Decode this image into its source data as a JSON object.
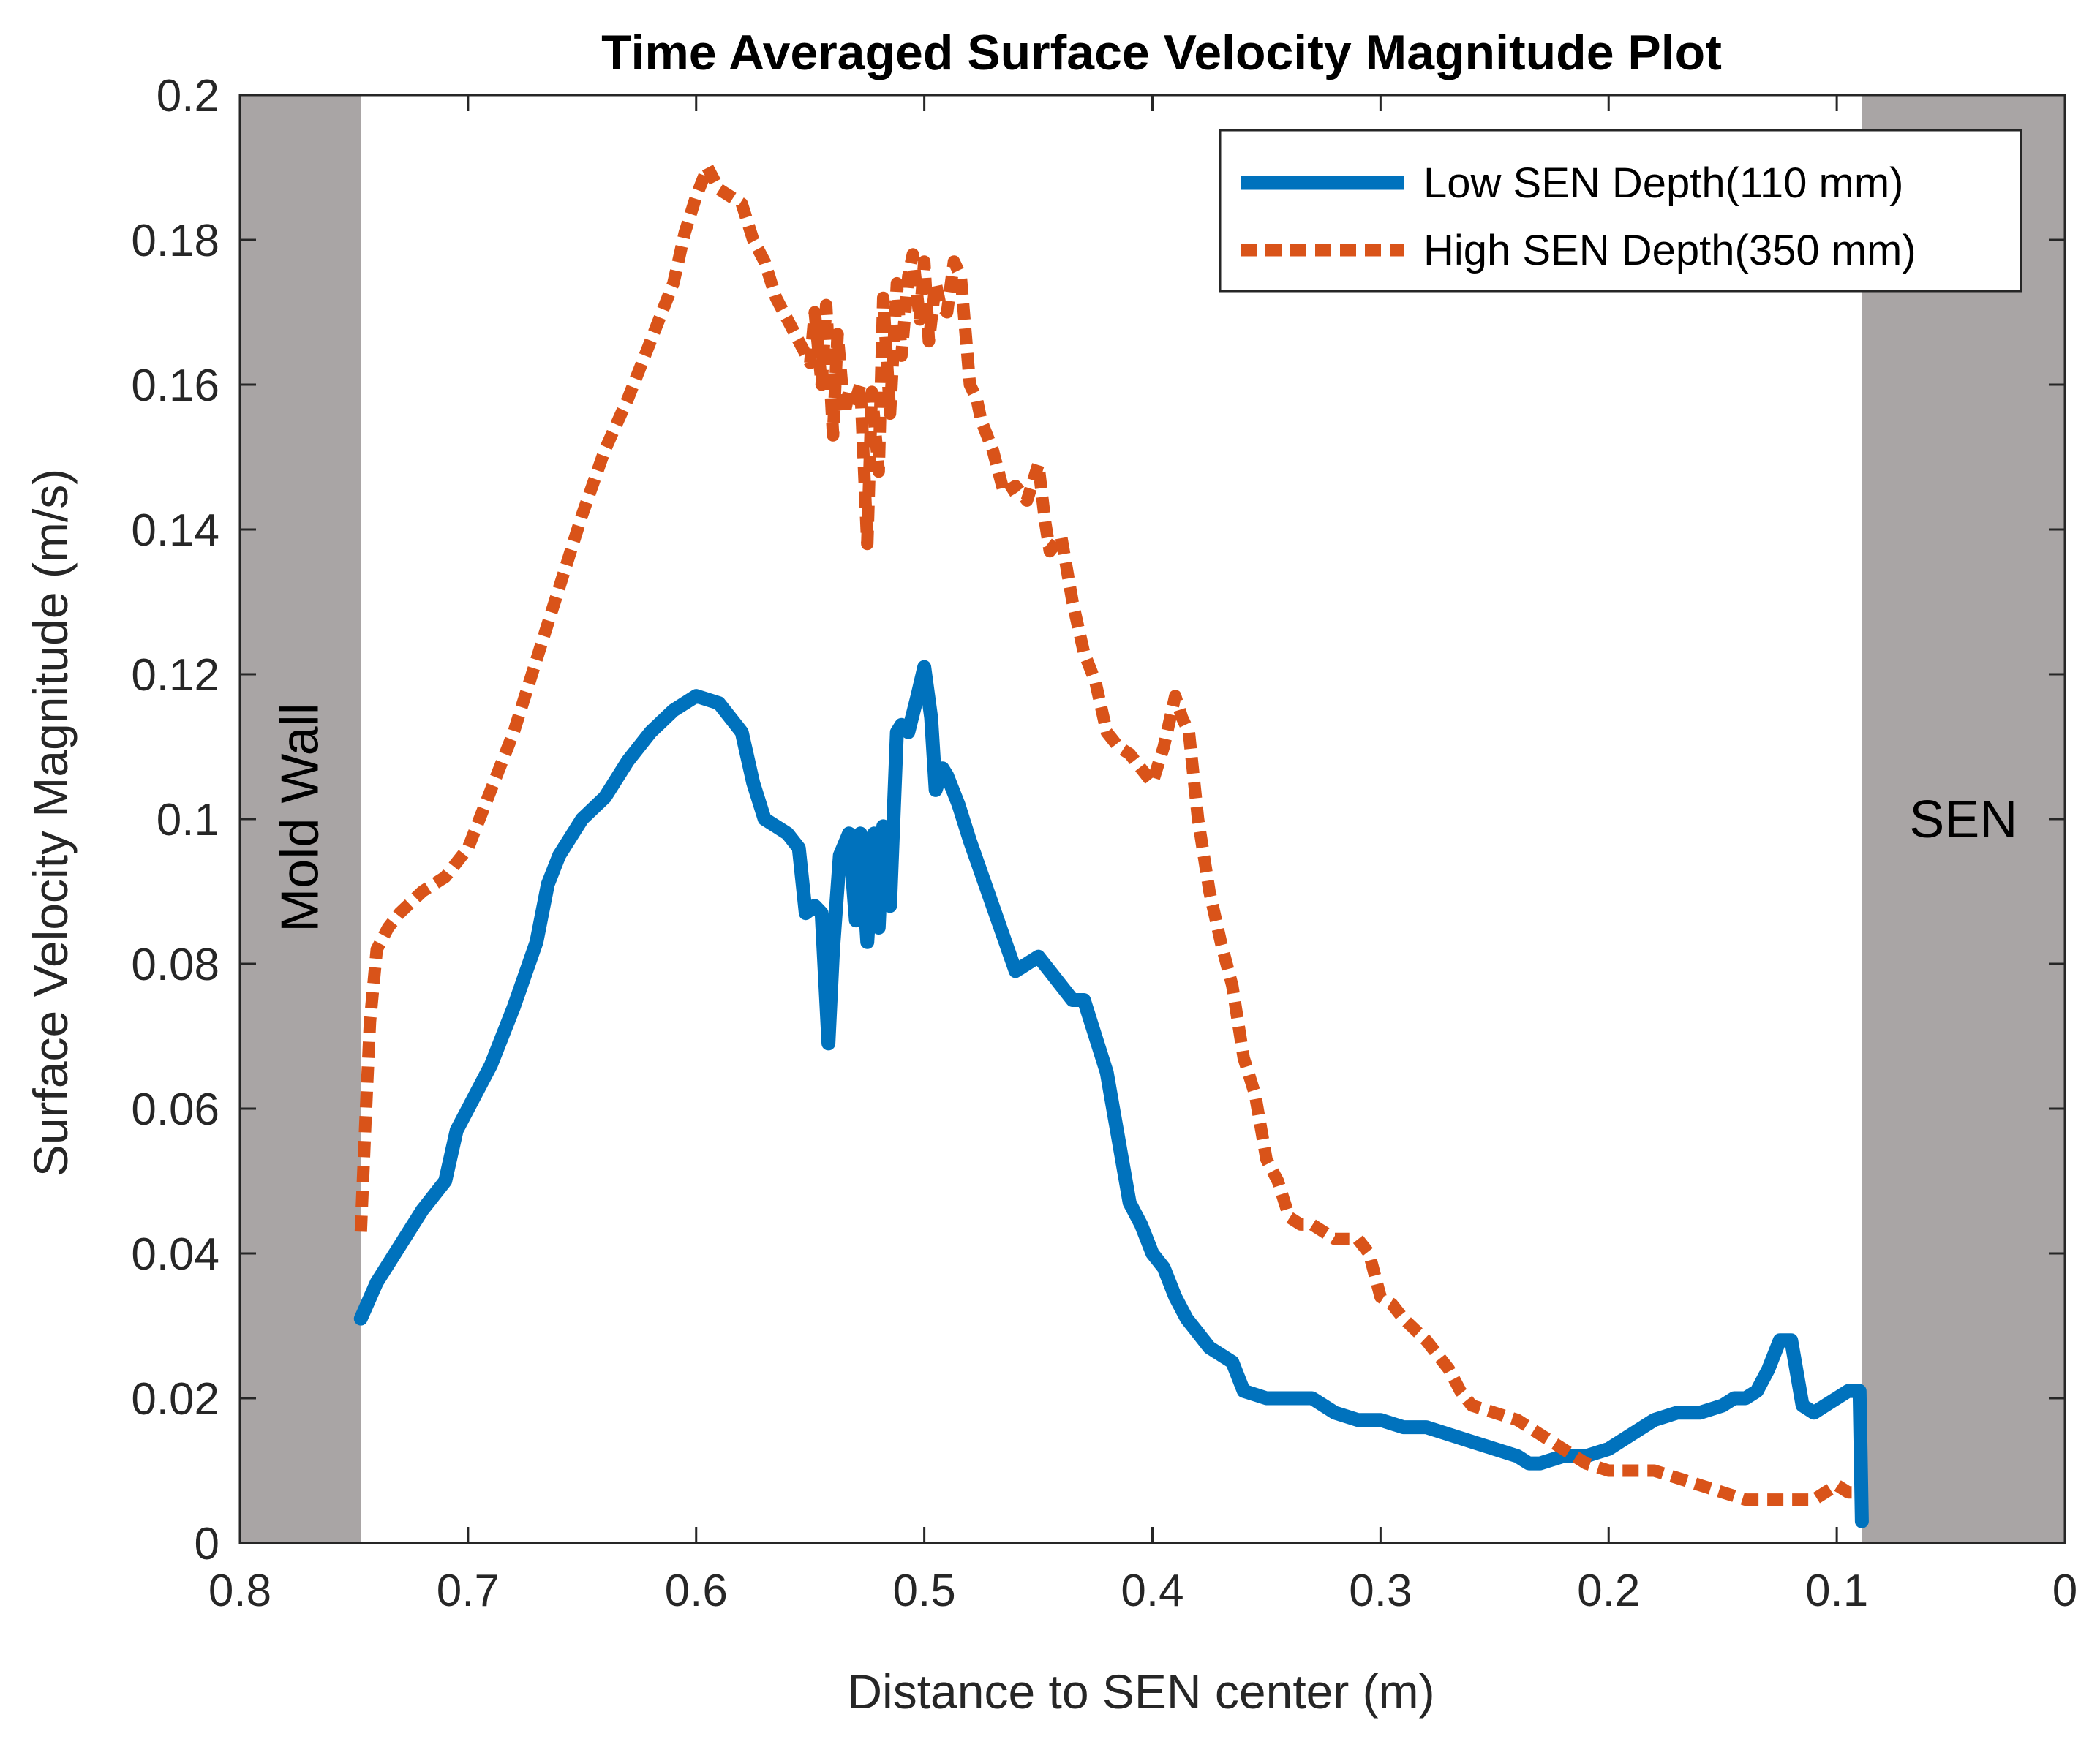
{
  "chart_data": {
    "type": "line",
    "title": "Time Averaged Surface Velocity Magnitude Plot",
    "xlabel": "Distance to SEN center (m)",
    "ylabel": "Surface Velocity Magnitude  (m/s)",
    "xlim": [
      0.8,
      0
    ],
    "ylim": [
      0,
      0.2
    ],
    "x_reversed": true,
    "grid": false,
    "legend_position": "top-right",
    "x_ticks": [
      0.8,
      0.7,
      0.6,
      0.5,
      0.4,
      0.3,
      0.2,
      0.1,
      0
    ],
    "x_tick_labels": [
      "0.8",
      "0.7",
      "0.6",
      "0.5",
      "0.4",
      "0.3",
      "0.2",
      "0.1",
      "0"
    ],
    "y_ticks": [
      0,
      0.02,
      0.04,
      0.06,
      0.08,
      0.1,
      0.12,
      0.14,
      0.16,
      0.18,
      0.2
    ],
    "y_tick_labels": [
      "0",
      "0.02",
      "0.04",
      "0.06",
      "0.08",
      "0.1",
      "0.12",
      "0.14",
      "0.16",
      "0.18",
      "0.2"
    ],
    "regions": [
      {
        "label": "Mold Wall",
        "x_from": 0.8,
        "x_to": 0.747,
        "color": "#a9a5a5",
        "label_rotated": true
      },
      {
        "label": "SEN",
        "x_from": 0.089,
        "x_to": 0,
        "color": "#a9a5a5",
        "label_rotated": false
      }
    ],
    "series": [
      {
        "name": "Low SEN Depth(110 mm)",
        "color": "#0072bd",
        "line_style": "solid",
        "x": [
          0.747,
          0.74,
          0.73,
          0.72,
          0.71,
          0.705,
          0.7,
          0.69,
          0.68,
          0.67,
          0.665,
          0.66,
          0.65,
          0.64,
          0.63,
          0.62,
          0.61,
          0.6,
          0.59,
          0.58,
          0.575,
          0.57,
          0.565,
          0.56,
          0.555,
          0.552,
          0.548,
          0.545,
          0.542,
          0.54,
          0.537,
          0.533,
          0.53,
          0.528,
          0.525,
          0.522,
          0.52,
          0.518,
          0.515,
          0.512,
          0.51,
          0.507,
          0.503,
          0.5,
          0.497,
          0.495,
          0.492,
          0.49,
          0.485,
          0.48,
          0.47,
          0.46,
          0.455,
          0.45,
          0.445,
          0.44,
          0.435,
          0.43,
          0.425,
          0.42,
          0.41,
          0.405,
          0.4,
          0.395,
          0.39,
          0.385,
          0.38,
          0.375,
          0.37,
          0.365,
          0.36,
          0.35,
          0.345,
          0.34,
          0.33,
          0.32,
          0.31,
          0.3,
          0.29,
          0.28,
          0.27,
          0.26,
          0.25,
          0.24,
          0.235,
          0.23,
          0.22,
          0.21,
          0.2,
          0.19,
          0.18,
          0.17,
          0.16,
          0.15,
          0.145,
          0.14,
          0.135,
          0.13,
          0.125,
          0.12,
          0.115,
          0.11,
          0.105,
          0.1,
          0.095,
          0.09,
          0.089
        ],
        "y": [
          0.031,
          0.036,
          0.041,
          0.046,
          0.05,
          0.057,
          0.06,
          0.066,
          0.074,
          0.083,
          0.091,
          0.095,
          0.1,
          0.103,
          0.108,
          0.112,
          0.115,
          0.117,
          0.116,
          0.112,
          0.105,
          0.1,
          0.099,
          0.098,
          0.096,
          0.087,
          0.088,
          0.087,
          0.069,
          0.082,
          0.095,
          0.098,
          0.086,
          0.098,
          0.083,
          0.098,
          0.085,
          0.099,
          0.088,
          0.112,
          0.113,
          0.112,
          0.117,
          0.121,
          0.114,
          0.104,
          0.107,
          0.106,
          0.102,
          0.097,
          0.088,
          0.079,
          0.08,
          0.081,
          0.079,
          0.077,
          0.075,
          0.075,
          0.07,
          0.065,
          0.047,
          0.044,
          0.04,
          0.038,
          0.034,
          0.031,
          0.029,
          0.027,
          0.026,
          0.025,
          0.021,
          0.02,
          0.02,
          0.02,
          0.02,
          0.018,
          0.017,
          0.017,
          0.016,
          0.016,
          0.015,
          0.014,
          0.013,
          0.012,
          0.011,
          0.011,
          0.012,
          0.012,
          0.013,
          0.015,
          0.017,
          0.018,
          0.018,
          0.019,
          0.02,
          0.02,
          0.021,
          0.024,
          0.028,
          0.028,
          0.019,
          0.018,
          0.019,
          0.02,
          0.021,
          0.021,
          0.003
        ]
      },
      {
        "name": "High SEN Depth(350 mm)",
        "color": "#d95319",
        "line_style": "dotted",
        "x": [
          0.747,
          0.745,
          0.743,
          0.74,
          0.735,
          0.73,
          0.72,
          0.71,
          0.7,
          0.69,
          0.68,
          0.67,
          0.66,
          0.65,
          0.64,
          0.63,
          0.62,
          0.61,
          0.605,
          0.6,
          0.595,
          0.59,
          0.585,
          0.58,
          0.575,
          0.57,
          0.565,
          0.56,
          0.555,
          0.55,
          0.548,
          0.545,
          0.543,
          0.54,
          0.538,
          0.535,
          0.533,
          0.53,
          0.528,
          0.525,
          0.523,
          0.52,
          0.518,
          0.515,
          0.512,
          0.51,
          0.507,
          0.505,
          0.502,
          0.5,
          0.498,
          0.495,
          0.493,
          0.49,
          0.487,
          0.484,
          0.48,
          0.477,
          0.475,
          0.47,
          0.465,
          0.46,
          0.455,
          0.45,
          0.447,
          0.445,
          0.44,
          0.435,
          0.43,
          0.425,
          0.42,
          0.415,
          0.41,
          0.405,
          0.4,
          0.395,
          0.39,
          0.387,
          0.384,
          0.38,
          0.375,
          0.37,
          0.365,
          0.36,
          0.355,
          0.35,
          0.345,
          0.34,
          0.335,
          0.33,
          0.32,
          0.31,
          0.305,
          0.3,
          0.295,
          0.29,
          0.28,
          0.27,
          0.265,
          0.26,
          0.25,
          0.24,
          0.23,
          0.22,
          0.21,
          0.2,
          0.19,
          0.18,
          0.17,
          0.16,
          0.15,
          0.14,
          0.13,
          0.12,
          0.11,
          0.1,
          0.095,
          0.09
        ],
        "y": [
          0.043,
          0.058,
          0.072,
          0.082,
          0.085,
          0.087,
          0.09,
          0.092,
          0.096,
          0.104,
          0.112,
          0.122,
          0.132,
          0.142,
          0.151,
          0.158,
          0.166,
          0.174,
          0.181,
          0.186,
          0.19,
          0.187,
          0.186,
          0.185,
          0.18,
          0.177,
          0.172,
          0.169,
          0.166,
          0.163,
          0.17,
          0.16,
          0.171,
          0.153,
          0.167,
          0.156,
          0.159,
          0.158,
          0.16,
          0.138,
          0.159,
          0.148,
          0.172,
          0.156,
          0.174,
          0.164,
          0.175,
          0.178,
          0.169,
          0.177,
          0.166,
          0.174,
          0.171,
          0.17,
          0.177,
          0.175,
          0.16,
          0.158,
          0.155,
          0.151,
          0.145,
          0.146,
          0.144,
          0.149,
          0.141,
          0.137,
          0.139,
          0.13,
          0.123,
          0.119,
          0.112,
          0.11,
          0.109,
          0.107,
          0.105,
          0.11,
          0.117,
          0.114,
          0.112,
          0.1,
          0.09,
          0.083,
          0.077,
          0.067,
          0.062,
          0.053,
          0.05,
          0.045,
          0.044,
          0.044,
          0.042,
          0.042,
          0.04,
          0.034,
          0.033,
          0.031,
          0.028,
          0.024,
          0.021,
          0.019,
          0.018,
          0.017,
          0.015,
          0.013,
          0.011,
          0.01,
          0.01,
          0.01,
          0.009,
          0.008,
          0.007,
          0.006,
          0.006,
          0.006,
          0.006,
          0.008,
          0.007,
          0.007
        ]
      }
    ]
  }
}
